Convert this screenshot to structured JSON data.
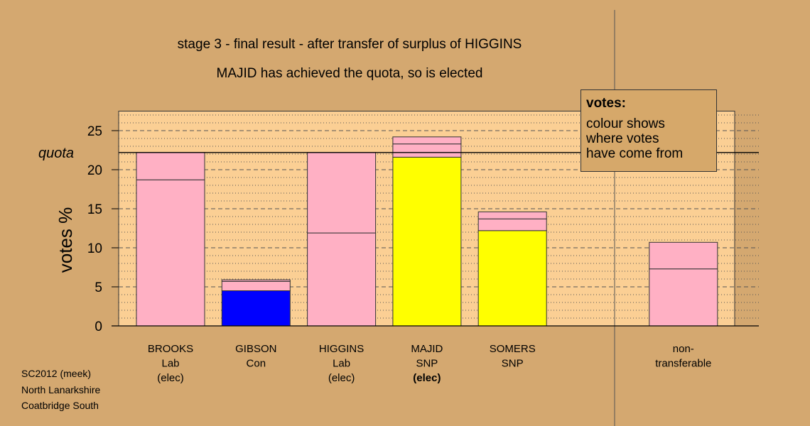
{
  "chart_data": {
    "type": "bar",
    "stacked": true,
    "title_line1": "stage 3 - final result - after transfer of surplus of HIGGINS",
    "title_line2": "MAJID has achieved the quota, so is elected",
    "ylabel": "votes %",
    "ylim": [
      0,
      27.5
    ],
    "yticks": [
      0,
      5,
      10,
      15,
      20,
      25
    ],
    "quota": 22.2,
    "quota_label": "quota",
    "grid": "dotted horizontal lines every 1%, dashed every 5%",
    "categories": [
      {
        "name": "BROOKS",
        "party": "Lab",
        "status": "(elec)"
      },
      {
        "name": "GIBSON",
        "party": "Con",
        "status": ""
      },
      {
        "name": "HIGGINS",
        "party": "Lab",
        "status": "(elec)"
      },
      {
        "name": "MAJID",
        "party": "SNP",
        "status": "(elec)"
      },
      {
        "name": "SOMERS",
        "party": "SNP",
        "status": ""
      },
      {
        "name": "",
        "party": "",
        "status": ""
      },
      {
        "name": "non-",
        "party": "transferable",
        "status": ""
      }
    ],
    "segments": [
      [
        {
          "value": 18.7,
          "color": "#ffb0c4"
        },
        {
          "value": 3.5,
          "color": "#ffb0c4"
        }
      ],
      [
        {
          "value": 4.5,
          "color": "#0000ff"
        },
        {
          "value": 1.2,
          "color": "#ffb0c4"
        },
        {
          "value": 0.2,
          "color": "#ffb0c4"
        }
      ],
      [
        {
          "value": 11.9,
          "color": "#ffb0c4"
        },
        {
          "value": 10.3,
          "color": "#ffb0c4"
        }
      ],
      [
        {
          "value": 21.6,
          "color": "#ffff00"
        },
        {
          "value": 1.7,
          "color": "#ffb0c4"
        },
        {
          "value": 0.9,
          "color": "#ffb0c4"
        }
      ],
      [
        {
          "value": 12.2,
          "color": "#ffff00"
        },
        {
          "value": 1.5,
          "color": "#ffb0c4"
        },
        {
          "value": 0.9,
          "color": "#ffb0c4"
        }
      ],
      [],
      [
        {
          "value": 7.3,
          "color": "#ffb0c4"
        },
        {
          "value": 3.4,
          "color": "#ffb0c4"
        }
      ]
    ]
  },
  "legend": {
    "title": "votes:",
    "line1": "colour shows",
    "line2": "where votes",
    "line3": "have come from"
  },
  "footer": {
    "line1": "SC2012 (meek)",
    "line2": "North Lanarkshire",
    "line3": "Coatbridge South"
  },
  "colors": {
    "background": "#d4a870",
    "plot_band": "#fbcf94",
    "lab": "#ffb0c4",
    "con": "#0000ff",
    "snp": "#ffff00"
  }
}
